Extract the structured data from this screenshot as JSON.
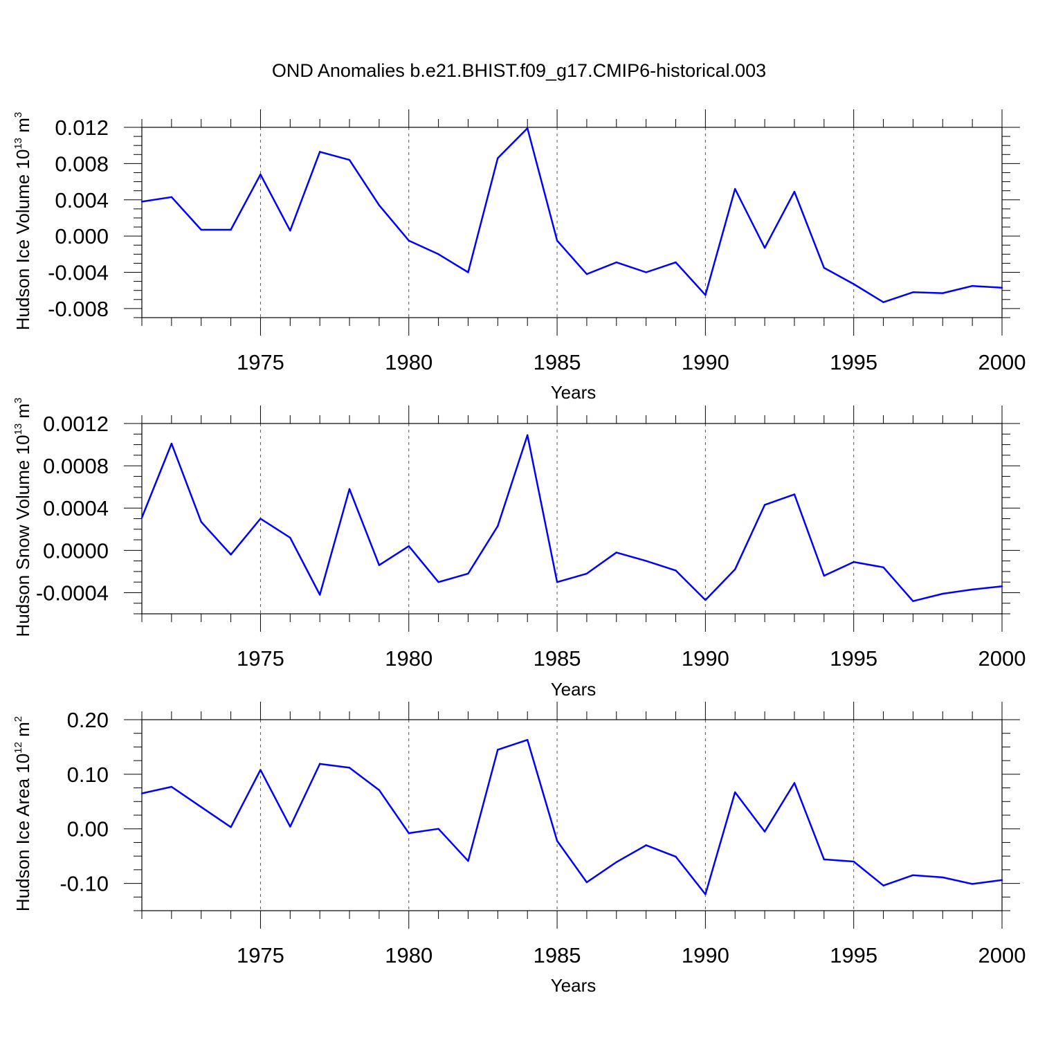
{
  "title": "OND Anomalies b.e21.BHIST.f09_g17.CMIP6-historical.003",
  "colors": {
    "line": "#0000ff",
    "axis": "#000000",
    "grid": "#555555"
  },
  "chart_data": [
    {
      "type": "line",
      "xlabel": "Years",
      "ylabel_main": "Hudson Ice Volume 10",
      "ylabel_exp": "13",
      "ylabel_unit": " m",
      "ylabel_unit_exp": "3",
      "x": [
        1971,
        1972,
        1973,
        1974,
        1975,
        1976,
        1977,
        1978,
        1979,
        1980,
        1981,
        1982,
        1983,
        1984,
        1985,
        1986,
        1987,
        1988,
        1989,
        1990,
        1991,
        1992,
        1993,
        1994,
        1995,
        1996,
        1997,
        1998,
        1999,
        2000
      ],
      "y": [
        0.0038,
        0.0043,
        0.0007,
        0.0007,
        0.0068,
        0.0006,
        0.0093,
        0.0084,
        0.0034,
        -0.0005,
        -0.002,
        -0.004,
        0.0086,
        0.0119,
        -0.0005,
        -0.0042,
        -0.0029,
        -0.004,
        -0.0029,
        -0.0065,
        0.0052,
        -0.0013,
        0.0049,
        -0.0035,
        -0.0053,
        -0.0073,
        -0.0062,
        -0.0063,
        -0.0055,
        -0.0057
      ],
      "xlim": [
        1971,
        2000
      ],
      "ylim": [
        -0.009,
        0.012
      ],
      "yticks": [
        "-0.008",
        "-0.004",
        "0.000",
        "0.004",
        "0.008",
        "0.012"
      ],
      "xticks": [
        "1975",
        "1980",
        "1985",
        "1990",
        "1995",
        "2000"
      ]
    },
    {
      "type": "line",
      "xlabel": "Years",
      "ylabel_main": "Hudson Snow Volume 10",
      "ylabel_exp": "13",
      "ylabel_unit": " m",
      "ylabel_unit_exp": "3",
      "x": [
        1971,
        1972,
        1973,
        1974,
        1975,
        1976,
        1977,
        1978,
        1979,
        1980,
        1981,
        1982,
        1983,
        1984,
        1985,
        1986,
        1987,
        1988,
        1989,
        1990,
        1991,
        1992,
        1993,
        1994,
        1995,
        1996,
        1997,
        1998,
        1999,
        2000
      ],
      "y": [
        0.00031,
        0.00101,
        0.00027,
        -4e-05,
        0.0003,
        0.00012,
        -0.00042,
        0.00058,
        -0.00014,
        4e-05,
        -0.0003,
        -0.00022,
        0.00023,
        0.00109,
        -0.0003,
        -0.00022,
        -2e-05,
        -0.0001,
        -0.00019,
        -0.00047,
        -0.00018,
        0.00043,
        0.00053,
        -0.00024,
        -0.00011,
        -0.00016,
        -0.00048,
        -0.00041,
        -0.00037,
        -0.00034
      ],
      "xlim": [
        1971,
        2000
      ],
      "ylim": [
        -0.0006,
        0.0012
      ],
      "yticks": [
        "-0.0004",
        "0.0000",
        "0.0004",
        "0.0008",
        "0.0012"
      ],
      "xticks": [
        "1975",
        "1980",
        "1985",
        "1990",
        "1995",
        "2000"
      ]
    },
    {
      "type": "line",
      "xlabel": "Years",
      "ylabel_main": "Hudson Ice Area 10",
      "ylabel_exp": "12",
      "ylabel_unit": " m",
      "ylabel_unit_exp": "2",
      "x": [
        1971,
        1972,
        1973,
        1974,
        1975,
        1976,
        1977,
        1978,
        1979,
        1980,
        1981,
        1982,
        1983,
        1984,
        1985,
        1986,
        1987,
        1988,
        1989,
        1990,
        1991,
        1992,
        1993,
        1994,
        1995,
        1996,
        1997,
        1998,
        1999,
        2000
      ],
      "y": [
        0.065,
        0.077,
        0.04,
        0.003,
        0.108,
        0.004,
        0.119,
        0.112,
        0.071,
        -0.008,
        0.0,
        -0.059,
        0.145,
        0.163,
        -0.022,
        -0.098,
        -0.061,
        -0.03,
        -0.051,
        -0.12,
        0.067,
        -0.005,
        0.084,
        -0.056,
        -0.06,
        -0.104,
        -0.085,
        -0.089,
        -0.101,
        -0.094
      ],
      "xlim": [
        1971,
        2000
      ],
      "ylim": [
        -0.15,
        0.2
      ],
      "yticks": [
        "-0.10",
        "0.00",
        "0.10",
        "0.20"
      ],
      "xticks": [
        "1975",
        "1980",
        "1985",
        "1990",
        "1995",
        "2000"
      ]
    }
  ]
}
